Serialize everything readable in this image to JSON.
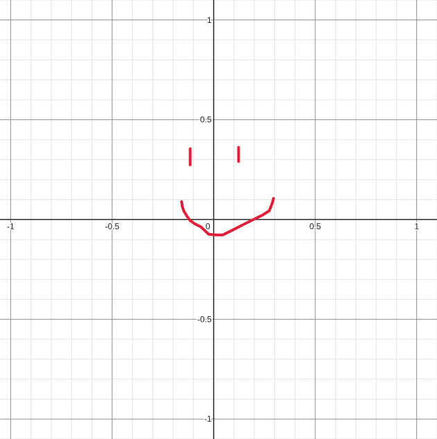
{
  "chart_data": {
    "type": "line",
    "title": "",
    "xlabel": "",
    "ylabel": "",
    "xlim": [
      -1.0524,
      1.1
    ],
    "ylim": [
      -1.1,
      1.1
    ],
    "grid": true,
    "x_ticks": [
      {
        "value": -1,
        "label": "-1"
      },
      {
        "value": -0.5,
        "label": "-0.5"
      },
      {
        "value": 0.5,
        "label": "0.5"
      },
      {
        "value": 1,
        "label": "1"
      }
    ],
    "y_ticks": [
      {
        "value": 1,
        "label": "1"
      },
      {
        "value": 0.5,
        "label": "0.5"
      },
      {
        "value": -0.5,
        "label": "-0.5"
      },
      {
        "value": -1,
        "label": "-1"
      }
    ],
    "origin_label": "0",
    "series": [
      {
        "color": "#e0203a",
        "points": [
          [
            -0.1158,
            0.3544
          ],
          [
            -0.1158,
            0.2737
          ]
        ]
      },
      {
        "color": "#e0203a",
        "points": [
          [
            0.1228,
            0.3614
          ],
          [
            0.1228,
            0.2912
          ]
        ]
      },
      {
        "color": "#e0203a",
        "points": [
          [
            -0.1579,
            0.0895
          ],
          [
            -0.1544,
            0.0649
          ],
          [
            -0.1474,
            0.0439
          ],
          [
            -0.1333,
            0.0193
          ],
          [
            -0.1158,
            -0.0053
          ],
          [
            -0.0912,
            -0.0228
          ],
          [
            -0.0632,
            -0.0368
          ],
          [
            -0.0246,
            -0.0737
          ],
          [
            0.0105,
            -0.0772
          ],
          [
            0.0456,
            -0.0772
          ],
          [
            0.0947,
            -0.0526
          ],
          [
            0.1439,
            -0.0263
          ],
          [
            0.193,
            -0.0018
          ],
          [
            0.2421,
            0.0228
          ],
          [
            0.2737,
            0.0439
          ],
          [
            0.2877,
            0.0789
          ],
          [
            0.2947,
            0.1053
          ]
        ]
      }
    ]
  }
}
